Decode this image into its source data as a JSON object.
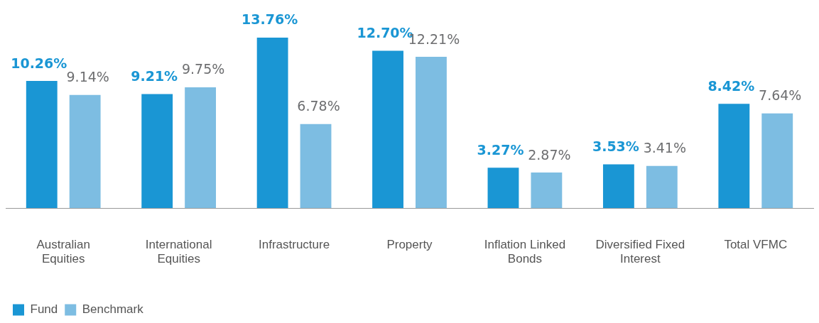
{
  "chart_data": {
    "type": "bar",
    "categories": [
      "Australian Equities",
      "International Equities",
      "Infrastructure",
      "Property",
      "Inflation Linked Bonds",
      "Diversified Fixed Interest",
      "Total VFMC"
    ],
    "series": [
      {
        "name": "Fund",
        "color": "#1a96d4",
        "values": [
          10.26,
          9.21,
          13.76,
          12.7,
          3.27,
          3.53,
          8.42
        ],
        "value_labels": [
          "10.26%",
          "9.21%",
          "13.76%",
          "12.70%",
          "3.27%",
          "3.53%",
          "8.42%"
        ]
      },
      {
        "name": "Benchmark",
        "color": "#7dbde2",
        "values": [
          9.14,
          9.75,
          6.78,
          12.21,
          2.87,
          3.41,
          7.64
        ],
        "value_labels": [
          "9.14%",
          "9.75%",
          "6.78%",
          "12.21%",
          "2.87%",
          "3.41%",
          "7.64%"
        ]
      }
    ],
    "legend": "bottom left",
    "grid": false
  }
}
